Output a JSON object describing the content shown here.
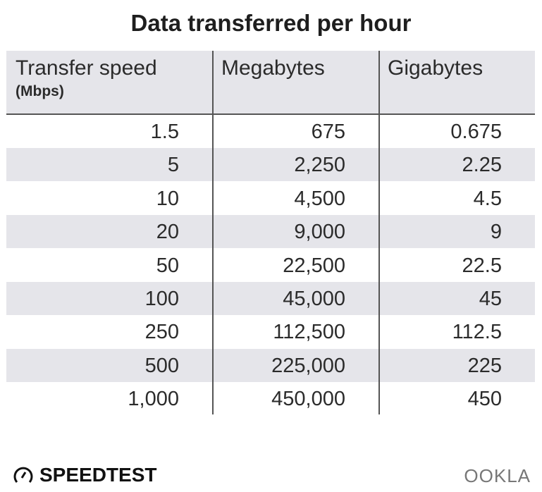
{
  "chart_data": {
    "type": "table",
    "title": "Data transferred per hour",
    "columns": [
      {
        "label": "Transfer speed",
        "sublabel": "(Mbps)"
      },
      {
        "label": "Megabytes"
      },
      {
        "label": "Gigabytes"
      }
    ],
    "rows": [
      [
        "1.5",
        "675",
        "0.675"
      ],
      [
        "5",
        "2,250",
        "2.25"
      ],
      [
        "10",
        "4,500",
        "4.5"
      ],
      [
        "20",
        "9,000",
        "9"
      ],
      [
        "50",
        "22,500",
        "22.5"
      ],
      [
        "100",
        "45,000",
        "45"
      ],
      [
        "250",
        "112,500",
        "112.5"
      ],
      [
        "500",
        "225,000",
        "225"
      ],
      [
        "1,000",
        "450,000",
        "450"
      ]
    ]
  },
  "branding": {
    "left": "SPEEDTEST",
    "right": "OOKLA"
  },
  "colors": {
    "header_bg": "#e5e5ea",
    "stripe_bg": "#e5e5ea",
    "divider": "#555555"
  }
}
